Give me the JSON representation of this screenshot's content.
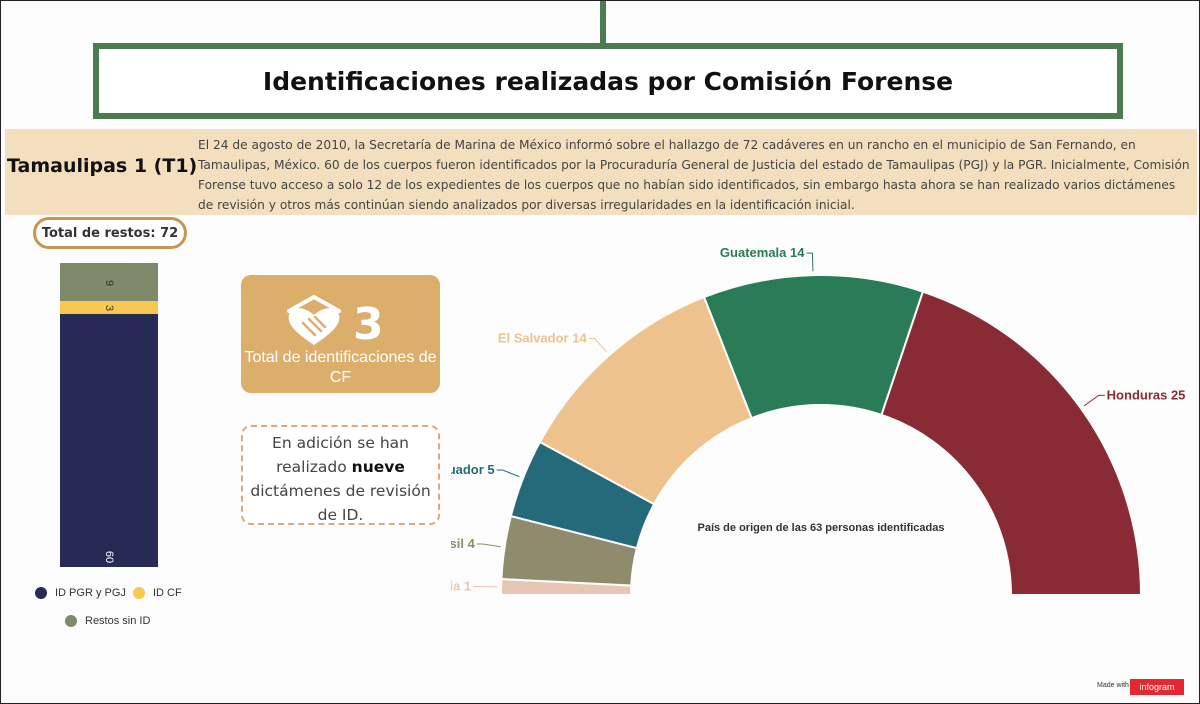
{
  "title": "Identificaciones realizadas por Comisión Forense",
  "state": "Tamaulipas 1 (T1)",
  "intro": "El 24 de agosto de 2010, la Secretaría de Marina de México informó sobre el hallazgo de 72 cadáveres en un rancho en el municipio de San Fernando, en Tamaulipas, México. 60 de los cuerpos fueron identificados por la Procuraduría General de Justicia del estado de Tamaulipas (PGJ) y la PGR. Inicialmente, Comisión Forense tuvo acceso a solo 12 de los expedientes de los cuerpos que no habían sido identificados, sin embargo hasta ahora se han realizado varios dictámenes de revisión y otros más continúan siendo analizados por diversas irregularidades en la identificación inicial.",
  "total_restos": "Total de restos: 72",
  "cf_card": {
    "number": "3",
    "label": "Total de identificaciones de CF",
    "icon": "hands-heart-icon"
  },
  "extra": {
    "before": "En adición se han realizado ",
    "bold": "nueve",
    "after": " dictámenes de revisión de ID."
  },
  "footer": {
    "made_with": "Made with",
    "brand": "infogram"
  },
  "chart_data": [
    {
      "type": "bar",
      "stacked": true,
      "orientation": "vertical",
      "categories": [
        "T1"
      ],
      "series": [
        {
          "name": "ID PGR y PGJ",
          "values": [
            60
          ],
          "color": "#272a54"
        },
        {
          "name": "ID CF",
          "values": [
            3
          ],
          "color": "#f8c751"
        },
        {
          "name": "Restos sin ID",
          "values": [
            9
          ],
          "color": "#7f8a6a"
        }
      ],
      "total": 72,
      "legend": "bottom"
    },
    {
      "type": "pie",
      "variant": "half-donut",
      "title": "País de origen de las 63 personas identificadas",
      "slices": [
        {
          "label": "India",
          "value": 1,
          "color": "#e6c7b5"
        },
        {
          "label": "Brasil",
          "value": 4,
          "color": "#8e8c6c"
        },
        {
          "label": "Ecuador",
          "value": 5,
          "color": "#246a7a"
        },
        {
          "label": "El Salvador",
          "value": 14,
          "color": "#eec28c"
        },
        {
          "label": "Guatemala",
          "value": 14,
          "color": "#2a7b58"
        },
        {
          "label": "Honduras",
          "value": 25,
          "color": "#892b34"
        }
      ]
    }
  ]
}
